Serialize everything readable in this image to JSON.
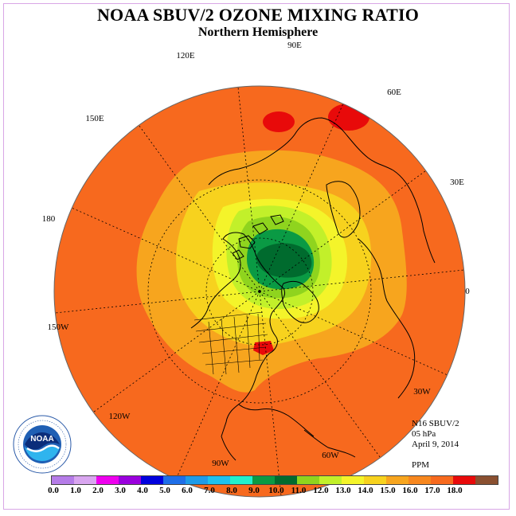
{
  "title": "NOAA SBUV/2 OZONE MIXING RATIO",
  "subtitle": "Northern Hemisphere",
  "longitude_labels": [
    "90E",
    "120E",
    "60E",
    "150E",
    "30E",
    "180",
    "0",
    "150W",
    "30W",
    "120W",
    "60W",
    "90W"
  ],
  "info": {
    "instrument": "N16 SBUV/2",
    "pressure": "05 hPa",
    "date": "April 9, 2014",
    "units": "PPM"
  },
  "logo_text": "NOAA",
  "colorbar": {
    "colors": [
      "#b57ce8",
      "#d9a6f0",
      "#ee00ee",
      "#9a00dd",
      "#0000dd",
      "#1e6ee8",
      "#1e9be8",
      "#1ec1ee",
      "#22f0cc",
      "#0a9a44",
      "#006b2e",
      "#8fd41e",
      "#c2f02a",
      "#f4f42a",
      "#f7d21e",
      "#f7a51e",
      "#f7871e",
      "#f76a1e",
      "#e80a0a",
      "#8a5030"
    ],
    "ticks": [
      "0.0",
      "1.0",
      "2.0",
      "3.0",
      "4.0",
      "5.0",
      "6.0",
      "7.0",
      "8.0",
      "9.0",
      "10.0",
      "11.0",
      "12.0",
      "13.0",
      "14.0",
      "15.0",
      "16.0",
      "17.0",
      "18.0"
    ]
  },
  "map_colors": {
    "orange_outer": "#f7691e",
    "orange_mid": "#f7a51e",
    "yellow_orange": "#f7d21e",
    "yellow": "#f4f42a",
    "yellow_green": "#c2f02a",
    "light_green": "#8fd41e",
    "mid_green": "#0a9a44",
    "dark_green": "#006b2e",
    "red": "#e80a0a"
  }
}
